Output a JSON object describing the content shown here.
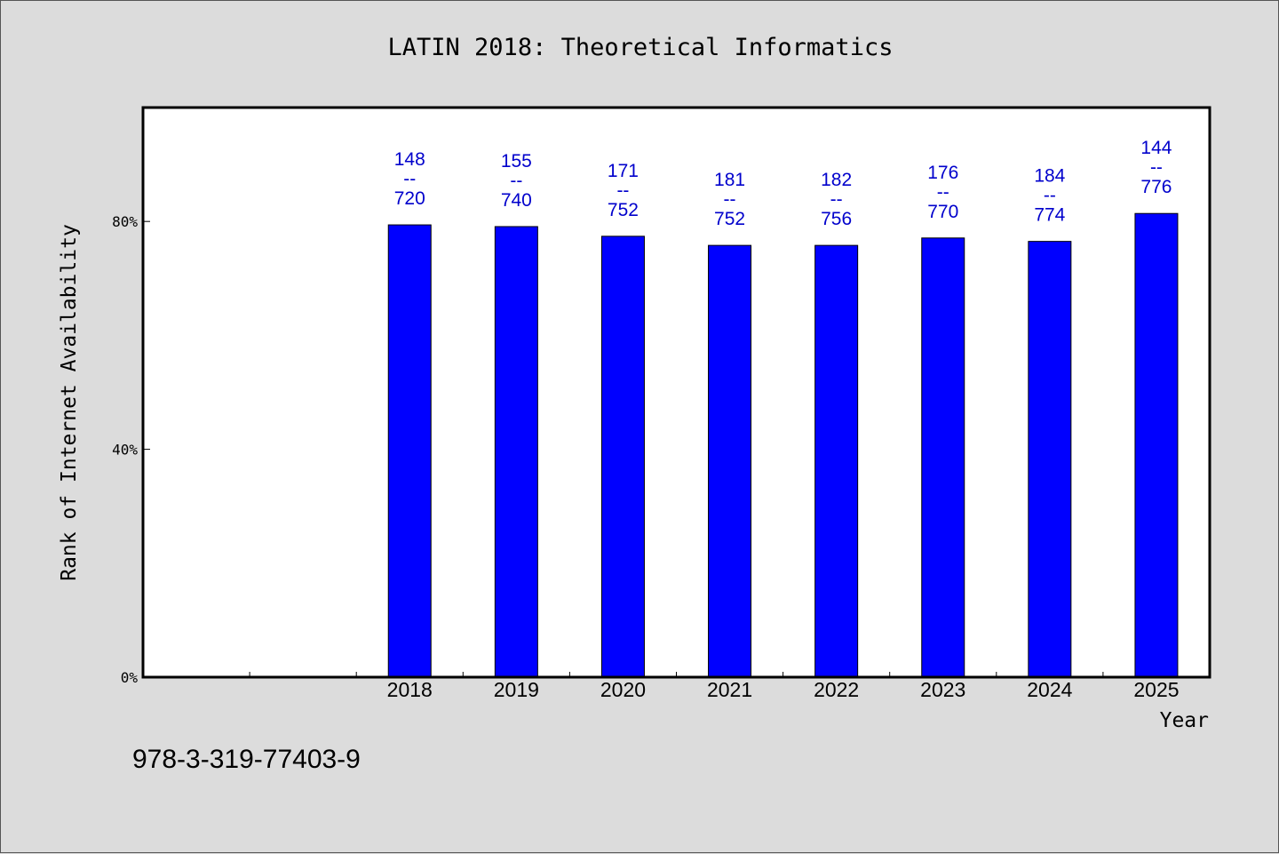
{
  "chart_data": {
    "type": "bar",
    "title": "LATIN 2018: Theoretical Informatics",
    "xlabel": "Year",
    "ylabel": "Rank of Internet Availability",
    "categories": [
      "",
      "",
      "2018",
      "2019",
      "2020",
      "2021",
      "2022",
      "2023",
      "2024",
      "2025"
    ],
    "values": [
      null,
      null,
      79.4,
      79.1,
      77.4,
      75.8,
      75.8,
      77.1,
      76.5,
      81.4
    ],
    "data_labels": [
      null,
      null,
      {
        "top": "148",
        "sep": "--",
        "bottom": "720"
      },
      {
        "top": "155",
        "sep": "--",
        "bottom": "740"
      },
      {
        "top": "171",
        "sep": "--",
        "bottom": "752"
      },
      {
        "top": "181",
        "sep": "--",
        "bottom": "752"
      },
      {
        "top": "182",
        "sep": "--",
        "bottom": "756"
      },
      {
        "top": "176",
        "sep": "--",
        "bottom": "770"
      },
      {
        "top": "184",
        "sep": "--",
        "bottom": "774"
      },
      {
        "top": "144",
        "sep": "--",
        "bottom": "776"
      }
    ],
    "yticks": [
      0,
      40,
      80
    ],
    "ytick_labels": [
      "0%",
      "40%",
      "80%"
    ],
    "ylim": [
      0,
      100
    ],
    "grid": false,
    "colors": {
      "bar": "#0000ff",
      "data_label": "#0000cc",
      "plot_background": "#ffffff",
      "page_background": "#dcdcdc"
    }
  },
  "footer": {
    "isbn": "978-3-319-77403-9"
  }
}
